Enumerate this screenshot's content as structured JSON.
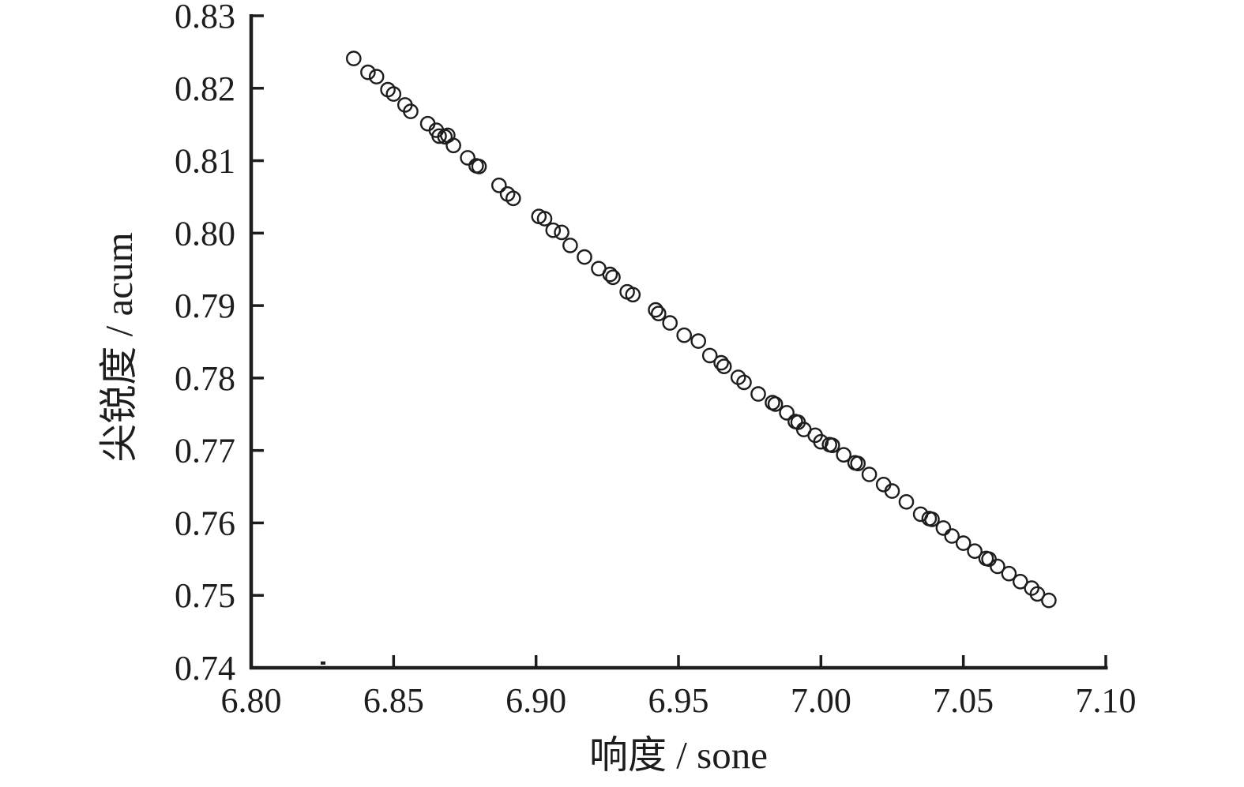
{
  "figure": {
    "background_color": "#ffffff",
    "ink_color": "#1d1d1d"
  },
  "chart_data": {
    "type": "scatter",
    "title": "",
    "xlabel": "响度 / sone",
    "ylabel": "尖锐度 / acum",
    "xlim": [
      6.8,
      7.1
    ],
    "ylim": [
      0.74,
      0.83
    ],
    "xticks": [
      6.8,
      6.85,
      6.9,
      6.95,
      7.0,
      7.05,
      7.1
    ],
    "xtick_labels": [
      "6.80",
      "6.85",
      "6.90",
      "6.95",
      "7.00",
      "7.05",
      "7.10"
    ],
    "yticks": [
      0.74,
      0.75,
      0.76,
      0.77,
      0.78,
      0.79,
      0.8,
      0.81,
      0.82,
      0.83
    ],
    "ytick_labels": [
      "0.74",
      "0.75",
      "0.76",
      "0.77",
      "0.78",
      "0.79",
      "0.80",
      "0.81",
      "0.82",
      "0.83"
    ],
    "grid": false,
    "legend": null,
    "marker": "open-circle",
    "marker_color": "#1d1d1d",
    "marker_fill": "none",
    "points": [
      [
        6.836,
        0.8241
      ],
      [
        6.841,
        0.8222
      ],
      [
        6.844,
        0.8216
      ],
      [
        6.848,
        0.8198
      ],
      [
        6.85,
        0.8192
      ],
      [
        6.854,
        0.8177
      ],
      [
        6.856,
        0.8168
      ],
      [
        6.862,
        0.8151
      ],
      [
        6.865,
        0.8142
      ],
      [
        6.866,
        0.8134
      ],
      [
        6.868,
        0.8133
      ],
      [
        6.869,
        0.8135
      ],
      [
        6.871,
        0.8121
      ],
      [
        6.876,
        0.8104
      ],
      [
        6.879,
        0.8093
      ],
      [
        6.88,
        0.8092
      ],
      [
        6.887,
        0.8066
      ],
      [
        6.89,
        0.8054
      ],
      [
        6.892,
        0.8048
      ],
      [
        6.901,
        0.8023
      ],
      [
        6.903,
        0.802
      ],
      [
        6.906,
        0.8004
      ],
      [
        6.909,
        0.8001
      ],
      [
        6.912,
        0.7983
      ],
      [
        6.917,
        0.7967
      ],
      [
        6.922,
        0.7951
      ],
      [
        6.926,
        0.7943
      ],
      [
        6.927,
        0.7939
      ],
      [
        6.932,
        0.7919
      ],
      [
        6.934,
        0.7915
      ],
      [
        6.942,
        0.7894
      ],
      [
        6.943,
        0.7889
      ],
      [
        6.947,
        0.7876
      ],
      [
        6.952,
        0.7859
      ],
      [
        6.957,
        0.7851
      ],
      [
        6.961,
        0.7831
      ],
      [
        6.965,
        0.7821
      ],
      [
        6.966,
        0.7816
      ],
      [
        6.971,
        0.7801
      ],
      [
        6.973,
        0.7794
      ],
      [
        6.978,
        0.7778
      ],
      [
        6.983,
        0.7766
      ],
      [
        6.984,
        0.7764
      ],
      [
        6.988,
        0.7752
      ],
      [
        6.991,
        0.774
      ],
      [
        6.992,
        0.7739
      ],
      [
        6.994,
        0.7729
      ],
      [
        6.998,
        0.7721
      ],
      [
        7.0,
        0.7712
      ],
      [
        7.003,
        0.7708
      ],
      [
        7.004,
        0.7707
      ],
      [
        7.008,
        0.7694
      ],
      [
        7.012,
        0.7683
      ],
      [
        7.013,
        0.7682
      ],
      [
        7.017,
        0.7667
      ],
      [
        7.022,
        0.7653
      ],
      [
        7.025,
        0.7644
      ],
      [
        7.03,
        0.7629
      ],
      [
        7.035,
        0.7612
      ],
      [
        7.038,
        0.7606
      ],
      [
        7.039,
        0.7605
      ],
      [
        7.043,
        0.7593
      ],
      [
        7.046,
        0.7582
      ],
      [
        7.05,
        0.7572
      ],
      [
        7.054,
        0.7561
      ],
      [
        7.058,
        0.7551
      ],
      [
        7.059,
        0.755
      ],
      [
        7.062,
        0.754
      ],
      [
        7.066,
        0.753
      ],
      [
        7.07,
        0.7519
      ],
      [
        7.074,
        0.751
      ],
      [
        7.076,
        0.7502
      ],
      [
        7.08,
        0.7493
      ]
    ]
  }
}
